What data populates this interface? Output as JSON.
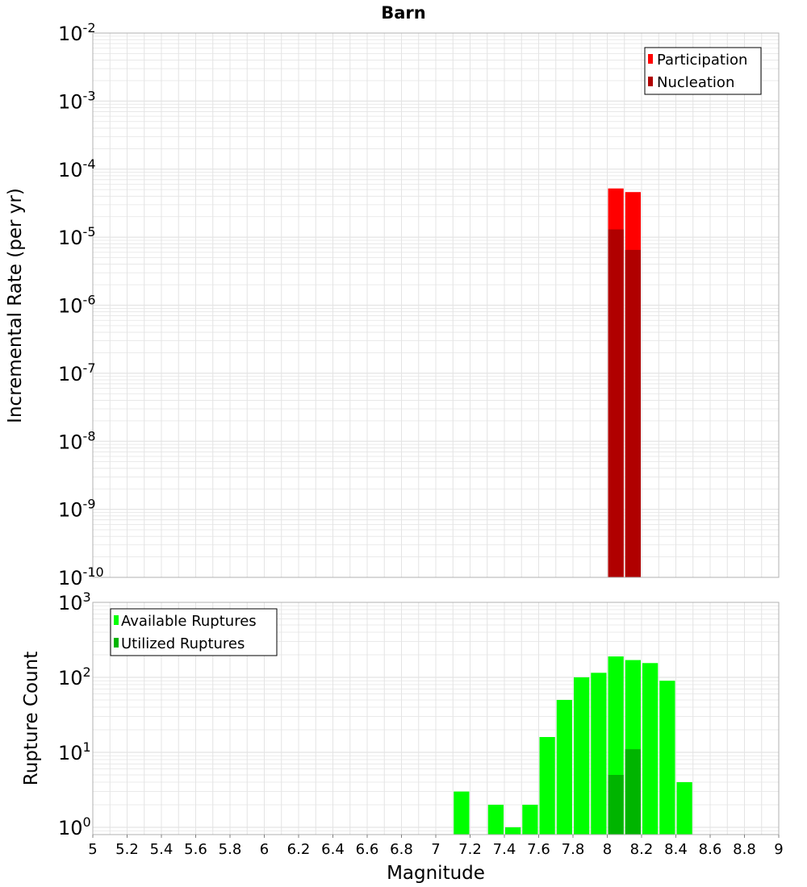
{
  "colors": {
    "participation": "#ff0000",
    "nucleation": "#b00000",
    "available": "#00ff00",
    "utilized": "#00b400",
    "grid": "#e4e4e4",
    "frame": "#b0b0b0"
  },
  "chart_data": [
    {
      "type": "bar",
      "title": "Barn",
      "ylabel": "Incremental Rate (per yr)",
      "yscale": "log",
      "ylim": [
        1e-10,
        0.01
      ],
      "xlim": [
        5,
        9
      ],
      "ytick_exponents": [
        "-2",
        "-3",
        "-4",
        "-5",
        "-6",
        "-7",
        "-8",
        "-9",
        "-10"
      ],
      "legend_position": "top-right",
      "series": [
        {
          "name": "Participation",
          "color_key": "participation",
          "x": [
            8.05,
            8.15
          ],
          "values": [
            5.2e-05,
            4.6e-05
          ]
        },
        {
          "name": "Nucleation",
          "color_key": "nucleation",
          "x": [
            8.05,
            8.15
          ],
          "values": [
            1.3e-05,
            6.5e-06
          ]
        }
      ]
    },
    {
      "type": "bar",
      "ylabel": "Rupture Count",
      "yscale": "log",
      "ylim": [
        0.8,
        1000
      ],
      "xlim": [
        5,
        9
      ],
      "ytick_exponents": [
        "3",
        "2",
        "1",
        "0"
      ],
      "xlabel": "Magnitude",
      "xtick_labels": [
        "5",
        "5.2",
        "5.4",
        "5.6",
        "5.8",
        "6",
        "6.2",
        "6.4",
        "6.6",
        "6.8",
        "7",
        "7.2",
        "7.4",
        "7.6",
        "7.8",
        "8",
        "8.2",
        "8.4",
        "8.6",
        "8.8",
        "9"
      ],
      "legend_position": "top-left",
      "series": [
        {
          "name": "Available Ruptures",
          "color_key": "available",
          "x": [
            7.15,
            7.35,
            7.45,
            7.55,
            7.65,
            7.75,
            7.85,
            7.95,
            8.05,
            8.15,
            8.25,
            8.35,
            8.45
          ],
          "values": [
            3,
            2,
            1,
            2,
            16,
            50,
            100,
            115,
            190,
            170,
            155,
            90,
            4
          ]
        },
        {
          "name": "Utilized Ruptures",
          "color_key": "utilized",
          "x": [
            8.05,
            8.15
          ],
          "values": [
            5,
            11
          ]
        }
      ]
    }
  ]
}
